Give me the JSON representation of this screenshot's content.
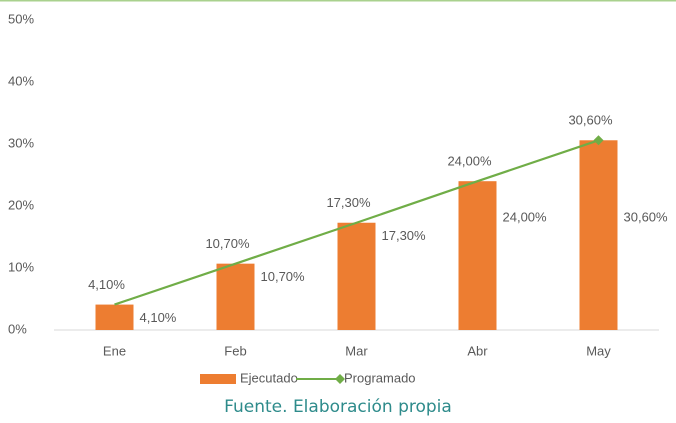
{
  "chart_data": {
    "type": "bar_line",
    "categories": [
      "Ene",
      "Feb",
      "Mar",
      "Abr",
      "May"
    ],
    "series": [
      {
        "name": "Ejecutado",
        "type": "bar",
        "color": "#ED7D31",
        "values": [
          4.1,
          10.7,
          17.3,
          24.0,
          30.6
        ],
        "value_labels": [
          "4,10%",
          "10,70%",
          "17,30%",
          "24,00%",
          "30,60%"
        ]
      },
      {
        "name": "Programado",
        "type": "line",
        "color": "#70AD47",
        "values": [
          4.1,
          10.7,
          17.3,
          24.0,
          30.6
        ],
        "value_labels": [
          "4,10%",
          "10,70%",
          "17,30%",
          "24,00%",
          "30,60%"
        ]
      }
    ],
    "ylim": [
      0,
      50
    ],
    "yticks": [
      {
        "value": 0,
        "label": "0%"
      },
      {
        "value": 10,
        "label": "10%"
      },
      {
        "value": 20,
        "label": "20%"
      },
      {
        "value": 30,
        "label": "30%"
      },
      {
        "value": 40,
        "label": "40%"
      },
      {
        "value": 50,
        "label": "50%"
      }
    ],
    "legend": "bottom",
    "caption": "Fuente. Elaboración propia"
  }
}
